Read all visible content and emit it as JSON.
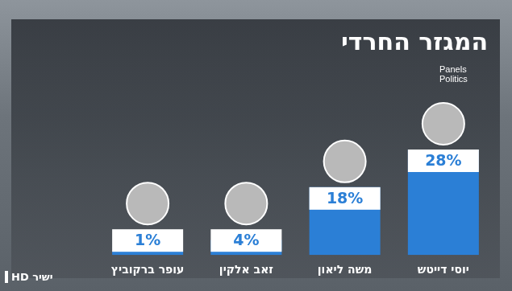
{
  "chart_data": {
    "type": "bar",
    "title": "המגזר החרדי",
    "source": "Panels Politics",
    "badge": "ישיר HD",
    "categories": [
      "עופר ברקוביץ",
      "זאב אלקין",
      "משה ליאון",
      "יוסי דייטש"
    ],
    "values": [
      1,
      4,
      18,
      28
    ],
    "value_labels": [
      "1%",
      "4%",
      "18%",
      "28%"
    ],
    "color": "#2b7fd6",
    "ylim": [
      0,
      28
    ],
    "grid": false,
    "data_labels": true,
    "tick_labels": "x"
  }
}
